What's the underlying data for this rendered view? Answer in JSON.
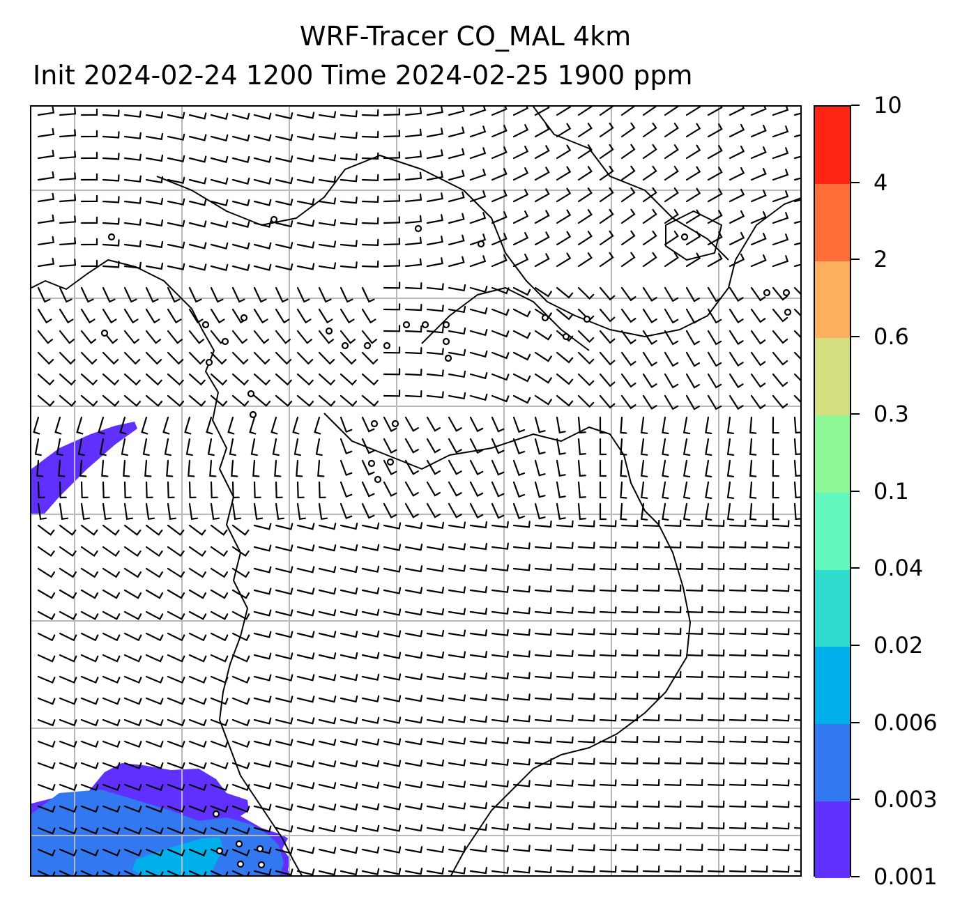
{
  "header": {
    "title_line1": "WRF-Tracer CO_MAL 4km",
    "title_line2": "Init 2024-02-24 1200 Time 2024-02-25 1900 ppm"
  },
  "colorbar": {
    "tick_labels": [
      "0.001",
      "0.003",
      "0.006",
      "0.02",
      "0.04",
      "0.1",
      "0.3",
      "0.6",
      "2",
      "4",
      "10"
    ],
    "colors": [
      "#6030ff",
      "#3278f0",
      "#00b0ea",
      "#2edcd0",
      "#62f8be",
      "#8cf896",
      "#d4e080",
      "#fcb05e",
      "#ff6e38",
      "#ff2414"
    ]
  },
  "map": {
    "variable": "CO_MAL tracer concentration",
    "units": "ppm",
    "overlay": "wind barbs",
    "gridlines": true,
    "coastlines": true,
    "plume_colors": {
      "level_0_001": "#6030ff",
      "level_0_003": "#3278f0",
      "level_0_006": "#00b0ea"
    }
  }
}
